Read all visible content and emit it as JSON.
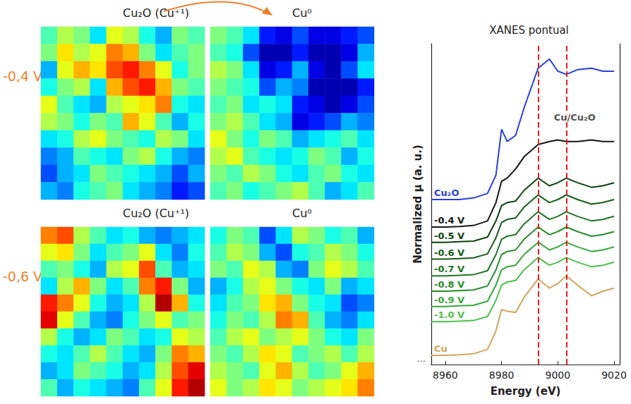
{
  "chart_data": [
    {
      "type": "heatmap",
      "title": "Cu₂O (Cu⁺¹)",
      "row_label": "-0,4 V",
      "zlim": [
        0,
        1
      ],
      "tick_labels": false,
      "cells": [
        [
          0.45,
          0.55,
          0.5,
          0.35,
          0.6,
          0.55,
          0.4,
          0.3,
          0.5,
          0.45
        ],
        [
          0.5,
          0.65,
          0.55,
          0.6,
          0.75,
          0.7,
          0.5,
          0.35,
          0.45,
          0.5
        ],
        [
          0.3,
          0.6,
          0.7,
          0.65,
          0.8,
          0.85,
          0.75,
          0.6,
          0.4,
          0.5
        ],
        [
          0.4,
          0.5,
          0.55,
          0.35,
          0.7,
          0.8,
          0.85,
          0.7,
          0.5,
          0.45
        ],
        [
          0.6,
          0.45,
          0.35,
          0.3,
          0.55,
          0.6,
          0.65,
          0.75,
          0.4,
          0.35
        ],
        [
          0.55,
          0.5,
          0.4,
          0.5,
          0.45,
          0.7,
          0.6,
          0.45,
          0.3,
          0.4
        ],
        [
          0.35,
          0.4,
          0.55,
          0.6,
          0.5,
          0.45,
          0.4,
          0.55,
          0.5,
          0.35
        ],
        [
          0.25,
          0.3,
          0.45,
          0.4,
          0.35,
          0.5,
          0.55,
          0.4,
          0.3,
          0.25
        ],
        [
          0.2,
          0.3,
          0.35,
          0.5,
          0.45,
          0.4,
          0.35,
          0.3,
          0.2,
          0.3
        ],
        [
          0.3,
          0.25,
          0.4,
          0.45,
          0.5,
          0.35,
          0.3,
          0.25,
          0.15,
          0.2
        ]
      ]
    },
    {
      "type": "heatmap",
      "title": "Cu⁰",
      "zlim": [
        0,
        1
      ],
      "tick_labels": false,
      "cells": [
        [
          0.5,
          0.45,
          0.35,
          0.15,
          0.1,
          0.2,
          0.1,
          0.1,
          0.15,
          0.2
        ],
        [
          0.45,
          0.4,
          0.2,
          0.05,
          0.05,
          0.15,
          0.05,
          0.05,
          0.1,
          0.3
        ],
        [
          0.55,
          0.5,
          0.35,
          0.1,
          0.15,
          0.3,
          0.1,
          0.05,
          0.2,
          0.35
        ],
        [
          0.5,
          0.45,
          0.4,
          0.2,
          0.3,
          0.25,
          0.05,
          0.05,
          0.05,
          0.15
        ],
        [
          0.45,
          0.5,
          0.35,
          0.4,
          0.35,
          0.15,
          0.1,
          0.05,
          0.1,
          0.2
        ],
        [
          0.5,
          0.55,
          0.45,
          0.35,
          0.3,
          0.1,
          0.15,
          0.2,
          0.3,
          0.25
        ],
        [
          0.6,
          0.5,
          0.4,
          0.5,
          0.45,
          0.3,
          0.35,
          0.4,
          0.45,
          0.35
        ],
        [
          0.55,
          0.6,
          0.45,
          0.4,
          0.35,
          0.4,
          0.5,
          0.45,
          0.3,
          0.4
        ],
        [
          0.5,
          0.45,
          0.55,
          0.5,
          0.4,
          0.35,
          0.45,
          0.5,
          0.4,
          0.35
        ],
        [
          0.45,
          0.5,
          0.4,
          0.45,
          0.5,
          0.55,
          0.45,
          0.3,
          0.35,
          0.45
        ]
      ]
    },
    {
      "type": "heatmap",
      "title": "Cu₂O (Cu⁺¹)",
      "row_label": "-0,6 V",
      "zlim": [
        0,
        1
      ],
      "tick_labels": false,
      "cells": [
        [
          0.75,
          0.8,
          0.55,
          0.45,
          0.35,
          0.4,
          0.3,
          0.25,
          0.3,
          0.35
        ],
        [
          0.6,
          0.65,
          0.5,
          0.35,
          0.45,
          0.5,
          0.6,
          0.35,
          0.25,
          0.4
        ],
        [
          0.45,
          0.5,
          0.4,
          0.3,
          0.55,
          0.6,
          0.8,
          0.45,
          0.3,
          0.35
        ],
        [
          0.35,
          0.55,
          0.7,
          0.5,
          0.35,
          0.45,
          0.75,
          0.85,
          0.5,
          0.3
        ],
        [
          0.85,
          0.75,
          0.6,
          0.4,
          0.3,
          0.35,
          0.55,
          0.95,
          0.7,
          0.4
        ],
        [
          0.9,
          0.6,
          0.45,
          0.3,
          0.25,
          0.4,
          0.5,
          0.6,
          0.45,
          0.5
        ],
        [
          0.55,
          0.4,
          0.3,
          0.35,
          0.5,
          0.45,
          0.35,
          0.4,
          0.6,
          0.55
        ],
        [
          0.4,
          0.35,
          0.45,
          0.55,
          0.45,
          0.35,
          0.3,
          0.5,
          0.75,
          0.7
        ],
        [
          0.3,
          0.35,
          0.5,
          0.45,
          0.4,
          0.3,
          0.35,
          0.55,
          0.8,
          0.9
        ],
        [
          0.45,
          0.3,
          0.4,
          0.35,
          0.3,
          0.25,
          0.45,
          0.6,
          0.85,
          0.95
        ]
      ]
    },
    {
      "type": "heatmap",
      "title": "Cu⁰",
      "zlim": [
        0,
        1
      ],
      "tick_labels": false,
      "cells": [
        [
          0.4,
          0.5,
          0.45,
          0.2,
          0.35,
          0.55,
          0.5,
          0.4,
          0.45,
          0.3
        ],
        [
          0.45,
          0.55,
          0.5,
          0.3,
          0.2,
          0.4,
          0.45,
          0.55,
          0.5,
          0.4
        ],
        [
          0.5,
          0.45,
          0.6,
          0.55,
          0.3,
          0.25,
          0.5,
          0.6,
          0.55,
          0.45
        ],
        [
          0.3,
          0.4,
          0.55,
          0.6,
          0.5,
          0.4,
          0.35,
          0.5,
          0.3,
          0.35
        ],
        [
          0.35,
          0.45,
          0.5,
          0.65,
          0.7,
          0.5,
          0.4,
          0.35,
          0.2,
          0.25
        ],
        [
          0.4,
          0.5,
          0.45,
          0.55,
          0.75,
          0.7,
          0.45,
          0.3,
          0.25,
          0.35
        ],
        [
          0.45,
          0.55,
          0.6,
          0.5,
          0.55,
          0.6,
          0.5,
          0.4,
          0.35,
          0.5
        ],
        [
          0.5,
          0.45,
          0.55,
          0.65,
          0.6,
          0.45,
          0.5,
          0.55,
          0.45,
          0.55
        ],
        [
          0.55,
          0.5,
          0.45,
          0.6,
          0.7,
          0.55,
          0.45,
          0.5,
          0.6,
          0.7
        ],
        [
          0.6,
          0.5,
          0.55,
          0.65,
          0.6,
          0.5,
          0.55,
          0.6,
          0.65,
          0.75
        ]
      ]
    },
    {
      "type": "line",
      "title": "XANES pontual",
      "x_label": "Energy (eV)",
      "y_label": "Normalized μ (a. u.)",
      "tick_labels": "x",
      "grid": false,
      "xlim": [
        8955,
        9022
      ],
      "xticks": [
        8960,
        8980,
        9000,
        9020
      ],
      "ylim": [
        0,
        10.5
      ],
      "x": [
        8955,
        8960,
        8965,
        8970,
        8975,
        8978,
        8980,
        8982,
        8985,
        8988,
        8993,
        8997,
        9000,
        9003,
        9007,
        9012,
        9016,
        9020
      ],
      "series": [
        {
          "name": "Cu₂O",
          "color": "#2a3fe0",
          "values": [
            5.4,
            5.4,
            5.4,
            5.45,
            5.6,
            6.2,
            7.7,
            7.3,
            7.5,
            8.4,
            9.7,
            10.0,
            9.6,
            9.5,
            9.65,
            9.7,
            9.6,
            9.6
          ]
        },
        {
          "name": "-0.4 V",
          "color": "#151515",
          "values": [
            4.5,
            4.5,
            4.52,
            4.55,
            4.7,
            5.3,
            6.0,
            6.1,
            6.4,
            6.8,
            7.2,
            7.3,
            7.35,
            7.3,
            7.3,
            7.35,
            7.3,
            7.3
          ]
        },
        {
          "name": "-0.5 V",
          "color": "#0f3f12",
          "values": [
            4.0,
            4.0,
            4.02,
            4.04,
            4.17,
            4.7,
            5.2,
            5.3,
            5.35,
            5.7,
            6.1,
            5.85,
            5.95,
            6.1,
            5.95,
            5.8,
            5.85,
            5.95
          ]
        },
        {
          "name": "-0.6 V",
          "color": "#165c1a",
          "values": [
            3.45,
            3.45,
            3.47,
            3.49,
            3.62,
            4.15,
            4.65,
            4.75,
            4.8,
            5.15,
            5.55,
            5.3,
            5.4,
            5.55,
            5.4,
            5.25,
            5.3,
            5.4
          ]
        },
        {
          "name": "-0.7 V",
          "color": "#1e7424",
          "values": [
            2.9,
            2.9,
            2.92,
            2.94,
            3.07,
            3.6,
            4.1,
            4.2,
            4.25,
            4.6,
            5.0,
            4.75,
            4.85,
            5.0,
            4.85,
            4.7,
            4.75,
            4.85
          ]
        },
        {
          "name": "-0.8 V",
          "color": "#268c2c",
          "values": [
            2.4,
            2.4,
            2.42,
            2.44,
            2.57,
            3.1,
            3.6,
            3.7,
            3.75,
            4.1,
            4.5,
            4.25,
            4.35,
            4.5,
            4.35,
            4.2,
            4.25,
            4.35
          ]
        },
        {
          "name": "-0.9 V",
          "color": "#35a73a",
          "values": [
            1.9,
            1.9,
            1.92,
            1.94,
            2.07,
            2.6,
            3.1,
            3.2,
            3.25,
            3.6,
            4.0,
            3.75,
            3.85,
            4.0,
            3.85,
            3.7,
            3.75,
            3.85
          ]
        },
        {
          "name": "-1.0 V",
          "color": "#4cc04a",
          "values": [
            1.4,
            1.4,
            1.42,
            1.44,
            1.57,
            2.1,
            2.6,
            2.7,
            2.75,
            3.1,
            3.5,
            3.25,
            3.35,
            3.5,
            3.35,
            3.2,
            3.25,
            3.35
          ]
        },
        {
          "name": "Cu",
          "color": "#d4a55c",
          "values": [
            0.3,
            0.3,
            0.32,
            0.35,
            0.5,
            1.1,
            1.8,
            1.75,
            1.7,
            2.2,
            2.8,
            2.5,
            2.65,
            2.9,
            2.6,
            2.25,
            2.4,
            2.5
          ]
        }
      ],
      "vlines": {
        "values": [
          8993,
          9003
        ],
        "color": "#e02020",
        "line_style": "dashed"
      },
      "annotations": [
        {
          "text": "Cu/Cu₂O",
          "x": 9006,
          "y": 8.1
        },
        {
          "text": "...",
          "x": 8955,
          "y": 0.2
        }
      ]
    }
  ]
}
